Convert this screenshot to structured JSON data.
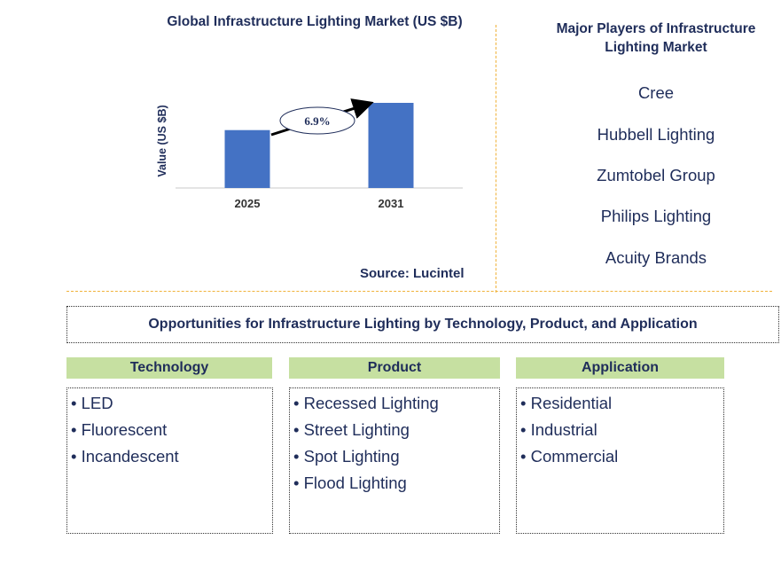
{
  "chart_data": {
    "type": "bar",
    "title": "Global Infrastructure Lighting Market (US $B)",
    "ylabel": "Value (US $B)",
    "xlabel": "",
    "categories": [
      "2025",
      "2031"
    ],
    "values": [
      0.68,
      1.0
    ],
    "ylim": [
      0,
      1.0
    ],
    "annotation": "6.9%",
    "bar_color": "#4472c4"
  },
  "source": "Source: Lucintel",
  "players": {
    "title": "Major Players of Infrastructure Lighting Market",
    "items": [
      "Cree",
      "Hubbell Lighting",
      "Zumtobel Group",
      "Philips Lighting",
      "Acuity Brands"
    ]
  },
  "opportunities": {
    "title": "Opportunities for Infrastructure Lighting by Technology, Product, and Application",
    "columns": [
      {
        "header": "Technology",
        "items": [
          "• LED",
          "• Fluorescent",
          "• Incandescent"
        ]
      },
      {
        "header": "Product",
        "items": [
          "• Recessed Lighting",
          "• Street Lighting",
          "• Spot Lighting",
          "• Flood Lighting"
        ]
      },
      {
        "header": "Application",
        "items": [
          "• Residential",
          "• Industrial",
          "• Commercial"
        ]
      }
    ]
  }
}
